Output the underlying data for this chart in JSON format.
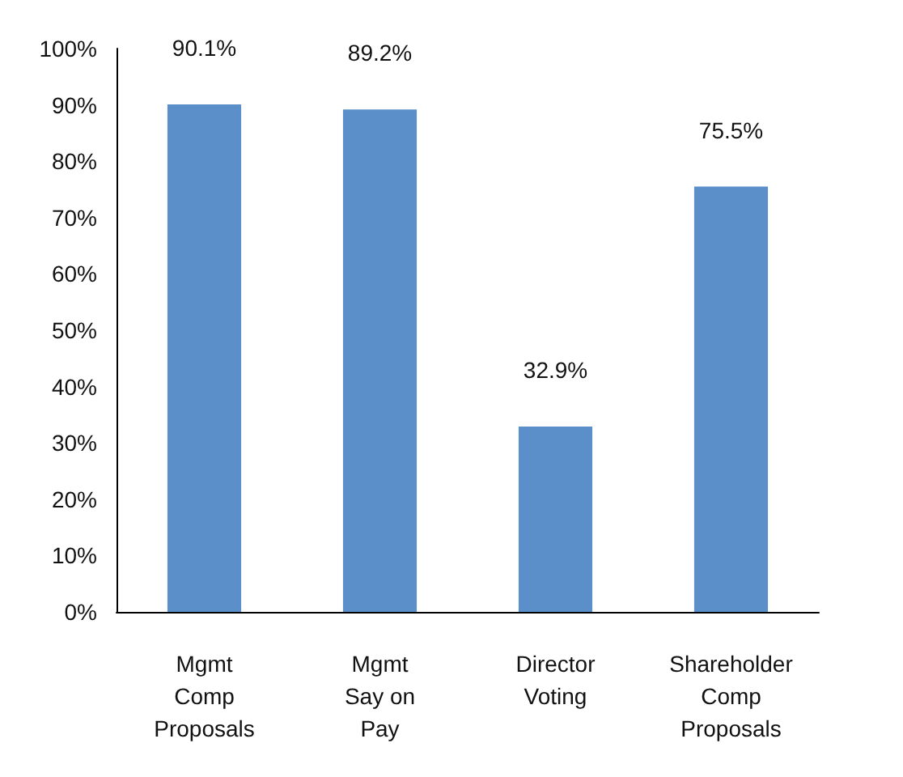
{
  "chart_data": {
    "type": "bar",
    "categories": [
      "Mgmt\nComp\nProposals",
      "Mgmt\nSay on\nPay",
      "Director\nVoting",
      "Shareholder\nComp\nProposals"
    ],
    "values": [
      90.1,
      89.2,
      32.9,
      75.5
    ],
    "color": "#5b8fc9",
    "value_labels": [
      "90.1%",
      "89.2%",
      "32.9%",
      "75.5%"
    ],
    "ylim": [
      0,
      100
    ],
    "yticks": [
      {
        "value": 0,
        "label": "0%"
      },
      {
        "value": 10,
        "label": "10%"
      },
      {
        "value": 20,
        "label": "20%"
      },
      {
        "value": 30,
        "label": "30%"
      },
      {
        "value": 40,
        "label": "40%"
      },
      {
        "value": 50,
        "label": "50%"
      },
      {
        "value": 60,
        "label": "60%"
      },
      {
        "value": 70,
        "label": "70%"
      },
      {
        "value": 80,
        "label": "80%"
      },
      {
        "value": 90,
        "label": "90%"
      },
      {
        "value": 100,
        "label": "100%"
      }
    ],
    "grid": false
  }
}
